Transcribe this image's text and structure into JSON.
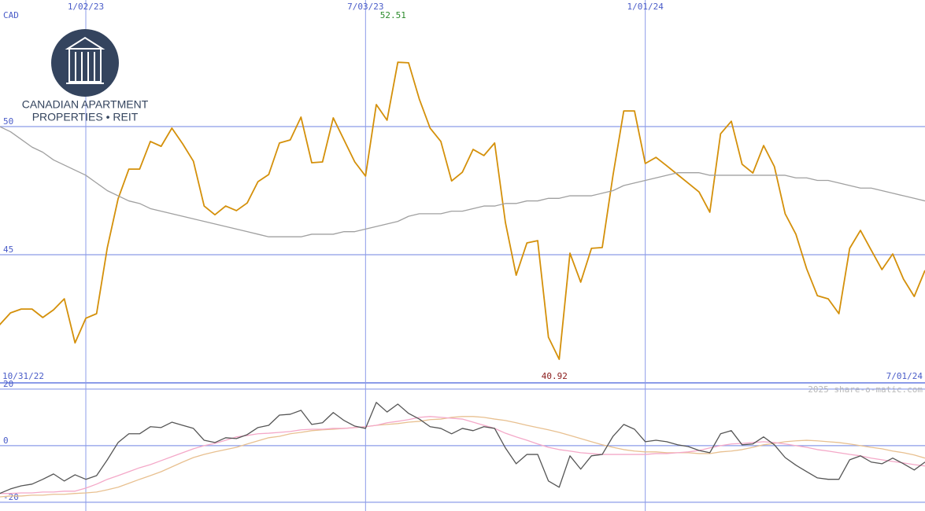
{
  "logo": {
    "line1": "CANADIAN APARTMENT",
    "line2": "PROPERTIES • REIT"
  },
  "watermark": "2025 share-o-matic.com",
  "chart_data": [
    {
      "type": "line",
      "ylabel": "CAD",
      "high": 52.51,
      "low": 40.92,
      "categories": [
        "10/31/22",
        null,
        null,
        null,
        null,
        null,
        null,
        null,
        null,
        "1/02/23",
        null,
        null,
        null,
        null,
        null,
        null,
        null,
        null,
        null,
        null,
        null,
        null,
        null,
        null,
        null,
        null,
        null,
        null,
        null,
        null,
        null,
        null,
        null,
        null,
        null,
        "7/03/23",
        null,
        null,
        null,
        null,
        null,
        null,
        null,
        null,
        null,
        null,
        null,
        null,
        null,
        null,
        null,
        null,
        null,
        null,
        null,
        null,
        null,
        null,
        null,
        null,
        null,
        "1/01/24",
        null,
        null,
        null,
        null,
        null,
        null,
        null,
        null,
        null,
        null,
        null,
        null,
        null,
        null,
        null,
        null,
        null,
        null,
        null,
        null,
        null,
        null,
        null,
        null,
        null,
        "7/01/24"
      ],
      "ylim": [
        40,
        54.94
      ],
      "yticks": [
        45,
        50
      ],
      "grid": true,
      "series": [
        {
          "color": "#d4900a",
          "values": [
            42.06,
            42.27,
            42.73,
            42.88,
            42.88,
            42.55,
            42.85,
            43.28,
            41.56,
            42.52,
            42.7,
            45.28,
            47.18,
            48.34,
            48.34,
            49.42,
            49.23,
            49.94,
            49.33,
            48.65,
            46.9,
            46.56,
            46.9,
            46.72,
            47.02,
            47.85,
            48.13,
            49.36,
            49.48,
            50.37,
            48.59,
            48.62,
            50.34,
            49.48,
            48.62,
            48.07,
            50.86,
            50.25,
            52.51,
            52.49,
            51.07,
            49.94,
            49.42,
            47.88,
            48.22,
            49.11,
            48.87,
            49.36,
            46.26,
            44.2,
            45.46,
            45.55,
            41.78,
            40.92,
            45.06,
            43.93,
            45.25,
            45.28,
            48.1,
            50.61,
            50.61,
            48.56,
            48.8,
            48.47,
            48.13,
            47.79,
            47.45,
            46.66,
            49.72,
            50.21,
            48.53,
            48.19,
            49.26,
            48.44,
            46.6,
            45.8,
            44.45,
            43.4,
            43.28,
            42.7,
            45.25,
            45.95,
            45.18,
            44.42,
            45.03,
            44.05,
            43.37,
            44.39
          ]
        },
        {
          "color": "#a0a0a0",
          "values": [
            50.3,
            50.0,
            49.8,
            49.5,
            49.2,
            49.0,
            48.7,
            48.5,
            48.3,
            48.1,
            47.8,
            47.5,
            47.3,
            47.1,
            47.0,
            46.8,
            46.7,
            46.6,
            46.5,
            46.4,
            46.3,
            46.2,
            46.1,
            46.0,
            45.9,
            45.8,
            45.7,
            45.7,
            45.7,
            45.7,
            45.8,
            45.8,
            45.8,
            45.9,
            45.9,
            46.0,
            46.1,
            46.2,
            46.3,
            46.5,
            46.6,
            46.6,
            46.6,
            46.7,
            46.7,
            46.8,
            46.9,
            46.9,
            47.0,
            47.0,
            47.1,
            47.1,
            47.2,
            47.2,
            47.3,
            47.3,
            47.3,
            47.4,
            47.5,
            47.7,
            47.8,
            47.9,
            48.0,
            48.1,
            48.2,
            48.2,
            48.2,
            48.1,
            48.1,
            48.1,
            48.1,
            48.1,
            48.1,
            48.1,
            48.1,
            48.0,
            48.0,
            47.9,
            47.9,
            47.8,
            47.7,
            47.6,
            47.6,
            47.5,
            47.4,
            47.3,
            47.2,
            47.1
          ]
        }
      ]
    },
    {
      "type": "line",
      "ylim": [
        -23.1,
        22.2
      ],
      "yticks": [
        -20,
        0,
        20
      ],
      "grid": true,
      "series": [
        {
          "color": "#e8c090",
          "values": [
            -18.1,
            -18.1,
            -17.8,
            -17.8,
            -17.5,
            -17.5,
            -17.2,
            -17.2,
            -16.9,
            -16.7,
            -16.4,
            -15.6,
            -14.7,
            -13.3,
            -11.9,
            -10.6,
            -9.2,
            -7.5,
            -5.8,
            -4.2,
            -3.1,
            -2.2,
            -1.4,
            -0.6,
            0.6,
            1.7,
            2.8,
            3.3,
            4.2,
            4.7,
            5.3,
            5.6,
            5.8,
            6.1,
            6.4,
            6.7,
            7.2,
            7.5,
            7.8,
            8.3,
            8.6,
            9.2,
            9.4,
            10.0,
            10.3,
            10.3,
            10.0,
            9.4,
            8.9,
            8.1,
            7.2,
            6.4,
            5.6,
            4.7,
            3.6,
            2.5,
            1.4,
            0.3,
            -0.6,
            -1.4,
            -1.9,
            -2.2,
            -2.2,
            -2.5,
            -2.5,
            -2.5,
            -2.8,
            -2.8,
            -2.2,
            -1.9,
            -1.4,
            -0.6,
            0.3,
            0.8,
            1.4,
            1.7,
            1.9,
            1.7,
            1.4,
            1.1,
            0.6,
            0.0,
            -0.6,
            -1.1,
            -1.9,
            -2.5,
            -3.3,
            -4.4
          ]
        },
        {
          "color": "#f4a8c8",
          "values": [
            -17.2,
            -16.9,
            -16.9,
            -16.7,
            -16.7,
            -16.4,
            -16.4,
            -16.1,
            -16.1,
            -15.0,
            -13.6,
            -11.9,
            -10.6,
            -9.2,
            -7.8,
            -6.7,
            -5.3,
            -3.9,
            -2.5,
            -1.1,
            0.0,
            0.8,
            1.9,
            3.1,
            3.6,
            4.2,
            4.4,
            4.7,
            5.0,
            5.6,
            5.8,
            5.8,
            6.1,
            6.1,
            6.4,
            6.7,
            7.2,
            8.1,
            8.6,
            9.2,
            10.0,
            10.3,
            10.0,
            9.7,
            9.4,
            8.3,
            7.2,
            6.1,
            4.4,
            3.1,
            1.9,
            0.6,
            -0.6,
            -1.4,
            -1.9,
            -2.5,
            -2.8,
            -3.1,
            -3.1,
            -3.1,
            -3.1,
            -3.1,
            -2.8,
            -2.8,
            -2.5,
            -2.2,
            -1.7,
            -0.8,
            0.0,
            0.6,
            0.8,
            1.1,
            1.4,
            1.1,
            0.6,
            0.0,
            -0.6,
            -1.4,
            -1.9,
            -2.5,
            -3.1,
            -3.6,
            -4.4,
            -5.0,
            -5.6,
            -6.1,
            -6.7,
            -7.2
          ]
        },
        {
          "color": "#555555",
          "values": [
            -18.1,
            -16.9,
            -15.3,
            -14.2,
            -13.6,
            -11.9,
            -10.0,
            -12.5,
            -10.3,
            -11.9,
            -10.6,
            -5.0,
            1.1,
            4.2,
            4.2,
            6.7,
            6.4,
            8.3,
            7.2,
            6.1,
            1.9,
            1.1,
            2.8,
            2.5,
            3.9,
            6.4,
            7.2,
            10.8,
            11.1,
            12.5,
            7.5,
            8.1,
            11.7,
            8.9,
            6.9,
            6.1,
            15.3,
            11.9,
            14.7,
            11.4,
            9.4,
            6.7,
            6.1,
            4.2,
            6.1,
            5.3,
            6.7,
            6.1,
            -0.8,
            -6.4,
            -3.1,
            -3.1,
            -12.5,
            -14.7,
            -3.6,
            -8.3,
            -3.6,
            -3.1,
            3.3,
            7.5,
            5.8,
            1.4,
            1.9,
            1.4,
            0.3,
            -0.3,
            -1.7,
            -2.5,
            4.2,
            5.3,
            0.3,
            0.6,
            3.1,
            0.3,
            -4.2,
            -6.9,
            -9.2,
            -11.4,
            -11.9,
            -11.9,
            -5.0,
            -3.6,
            -5.8,
            -6.4,
            -4.4,
            -6.4,
            -8.6,
            -5.8
          ]
        }
      ]
    }
  ]
}
